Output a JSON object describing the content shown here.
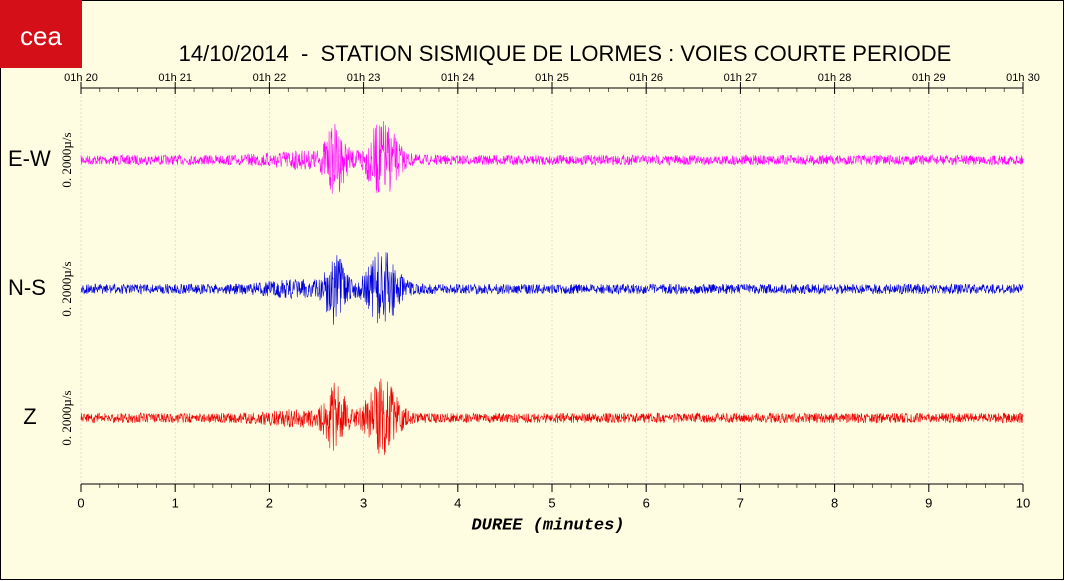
{
  "logo": "cea",
  "chart_data": {
    "type": "seismogram",
    "title": "14/10/2014  -  STATION SISMIQUE DE LORMES : VOIES COURTE PERIODE",
    "x_label": "DUREE (minutes)",
    "xlim": [
      0,
      10
    ],
    "xticks": [
      0,
      1,
      2,
      3,
      4,
      5,
      6,
      7,
      8,
      9,
      10
    ],
    "x2ticks": [
      {
        "value": 0,
        "label": "01h 20"
      },
      {
        "value": 1,
        "label": "01h 21"
      },
      {
        "value": 2,
        "label": "01h 22"
      },
      {
        "value": 3,
        "label": "01h 23"
      },
      {
        "value": 4,
        "label": "01h 24"
      },
      {
        "value": 5,
        "label": "01h 25"
      },
      {
        "value": 6,
        "label": "01h 26"
      },
      {
        "value": 7,
        "label": "01h 27"
      },
      {
        "value": 8,
        "label": "01h 28"
      },
      {
        "value": 9,
        "label": "01h 29"
      },
      {
        "value": 10,
        "label": "01h 30"
      }
    ],
    "series": [
      {
        "name": "E-W",
        "color": "#ff00ff",
        "scale_label": "0. 2000µ/s"
      },
      {
        "name": "N-S",
        "color": "#0000dd",
        "scale_label": "0. 2000µ/s"
      },
      {
        "name": "Z",
        "color": "#ee0000",
        "scale_label": "0. 2000µ/s"
      }
    ]
  }
}
